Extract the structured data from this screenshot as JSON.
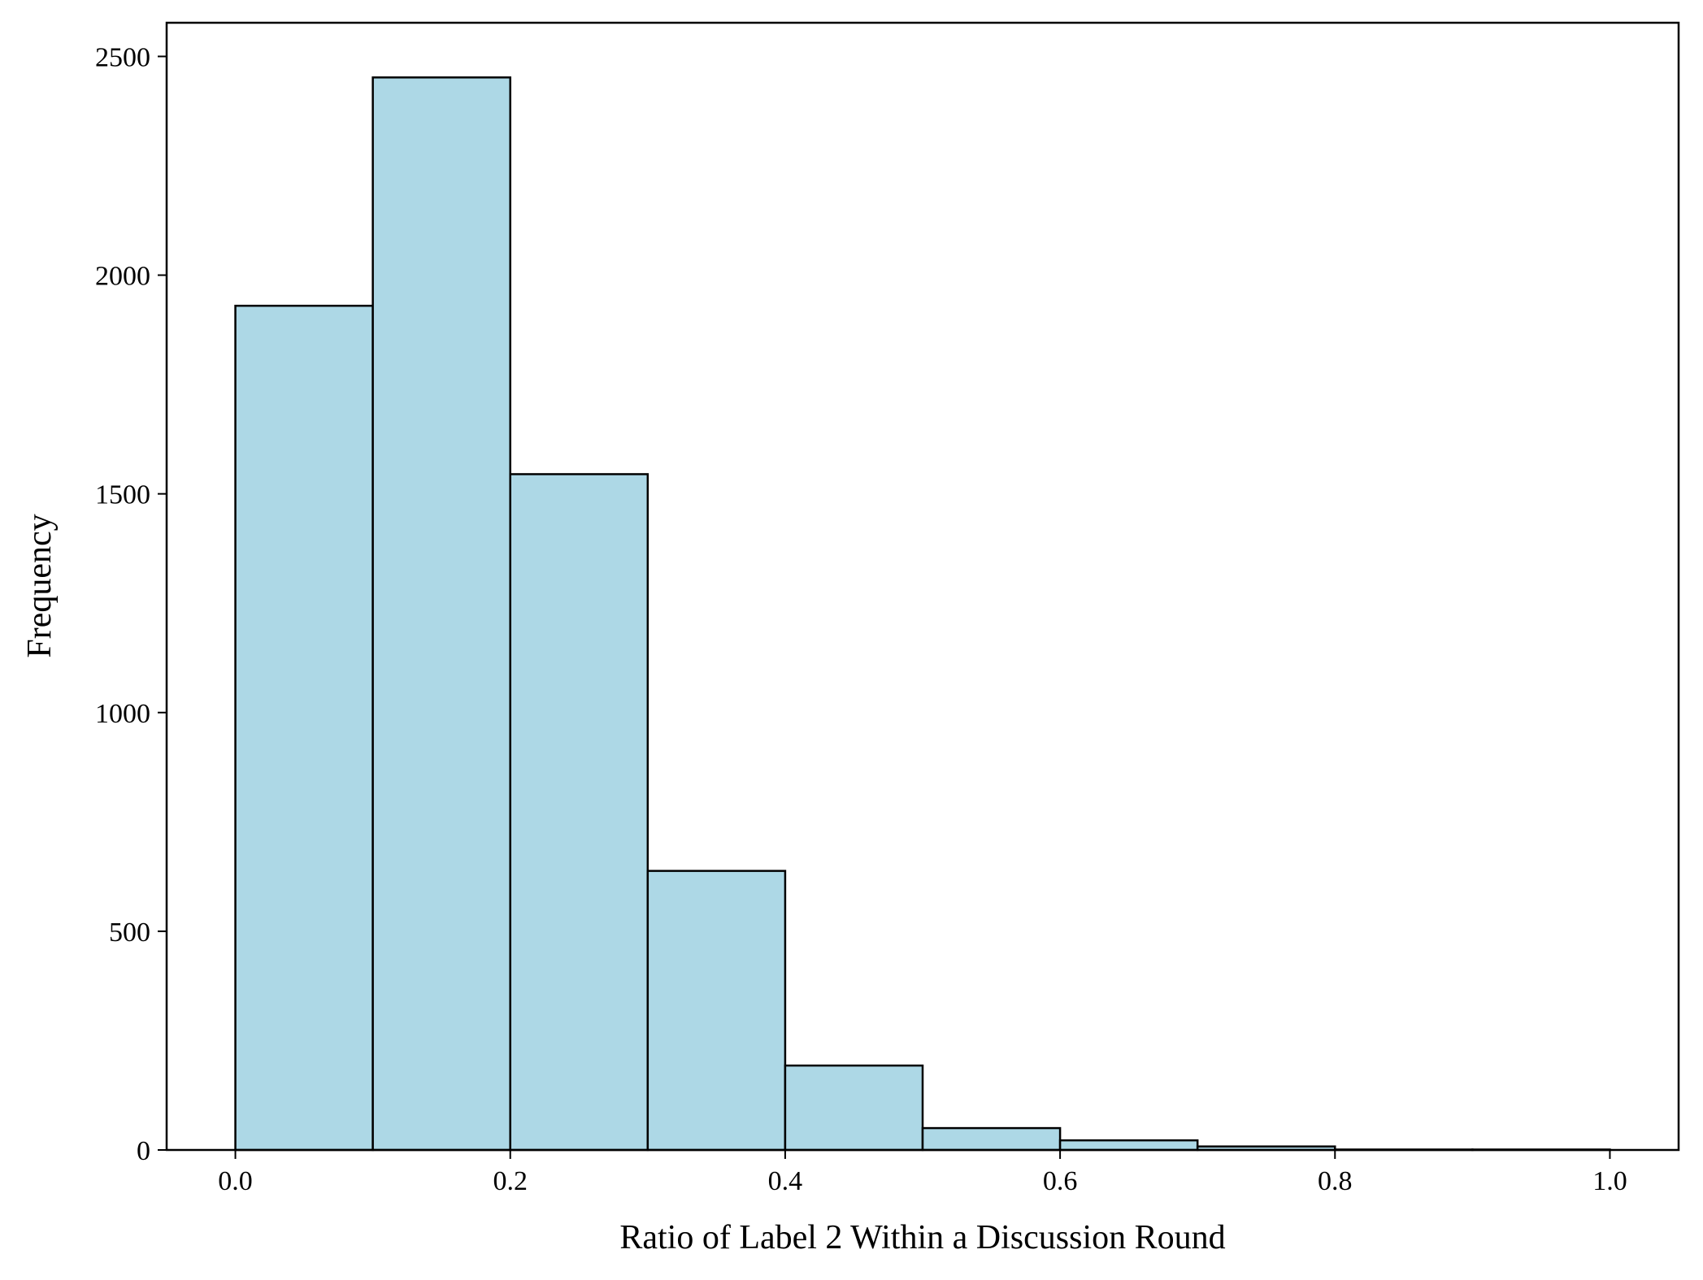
{
  "chart_data": {
    "type": "bar",
    "subtype": "histogram",
    "title": "",
    "xlabel": "Ratio of Label 2 Within a Discussion Round",
    "ylabel": "Frequency",
    "bins": [
      {
        "x0": 0.0,
        "x1": 0.1,
        "value": 1930
      },
      {
        "x0": 0.1,
        "x1": 0.2,
        "value": 2452
      },
      {
        "x0": 0.2,
        "x1": 0.3,
        "value": 1545
      },
      {
        "x0": 0.3,
        "x1": 0.4,
        "value": 638
      },
      {
        "x0": 0.4,
        "x1": 0.5,
        "value": 193
      },
      {
        "x0": 0.5,
        "x1": 0.6,
        "value": 50
      },
      {
        "x0": 0.6,
        "x1": 0.7,
        "value": 22
      },
      {
        "x0": 0.7,
        "x1": 0.8,
        "value": 8
      },
      {
        "x0": 0.8,
        "x1": 0.9,
        "value": 1
      },
      {
        "x0": 0.9,
        "x1": 1.0,
        "value": 1
      }
    ],
    "xlim": [
      -0.05,
      1.05
    ],
    "ylim": [
      0,
      2577
    ],
    "x_ticks": [
      0.0,
      0.2,
      0.4,
      0.6,
      0.8,
      1.0
    ],
    "x_tick_labels": [
      "0.0",
      "0.2",
      "0.4",
      "0.6",
      "0.8",
      "1.0"
    ],
    "y_ticks": [
      0,
      500,
      1000,
      1500,
      2000,
      2500
    ],
    "y_tick_labels": [
      "0",
      "500",
      "1000",
      "1500",
      "2000",
      "2500"
    ],
    "bar_fill": "#add8e6",
    "bar_edge": "#000000",
    "grid": false,
    "legend": "none"
  }
}
